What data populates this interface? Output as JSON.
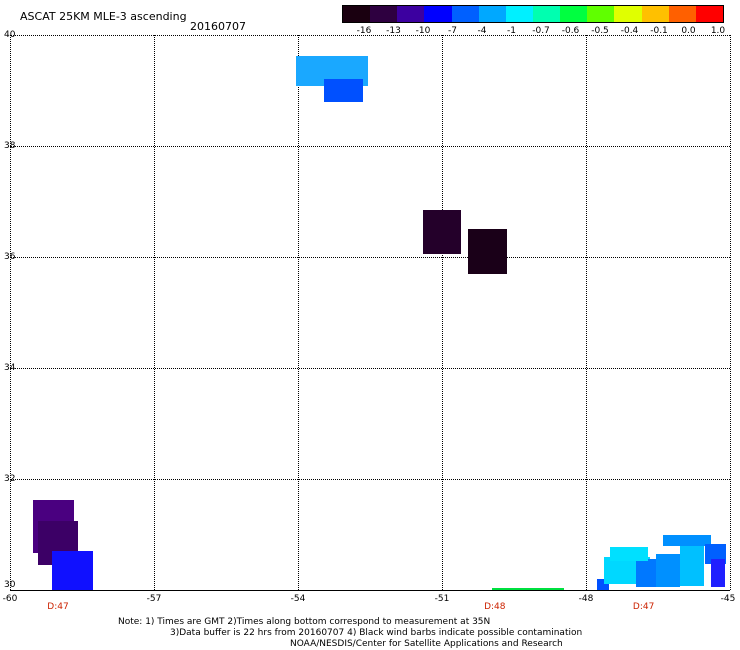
{
  "header": {
    "title": "ASCAT 25KM MLE-3 ascending",
    "date": "20160707"
  },
  "colorbar": {
    "labels": [
      "-16",
      "-13",
      "-10",
      "-7",
      "-4",
      "-1",
      "-0.7",
      "-0.6",
      "-0.5",
      "-0.4",
      "-0.1",
      "0.0",
      "1.0"
    ],
    "colors": [
      "#1a0010",
      "#2e0040",
      "#3c00a0",
      "#0000ff",
      "#0060ff",
      "#00a8ff",
      "#00f0ff",
      "#00ffb0",
      "#00ff40",
      "#60ff00",
      "#e0ff00",
      "#ffc000",
      "#ff6000",
      "#ff0000"
    ]
  },
  "chart_data": {
    "type": "heatmap",
    "x_ticks": [
      "-60",
      "-57",
      "-54",
      "-51",
      "-48",
      "-45"
    ],
    "y_ticks": [
      "40",
      "38",
      "36",
      "34",
      "32",
      "30"
    ],
    "xlim": [
      -60,
      -45
    ],
    "ylim": [
      30,
      40
    ],
    "grid": true,
    "time_labels": [
      {
        "lon": -59.0,
        "text": "D:47"
      },
      {
        "lon": -49.9,
        "text": "D:48"
      },
      {
        "lon": -46.8,
        "text": "D:47"
      }
    ],
    "cells": [
      {
        "lon": -53.3,
        "lat": 39.35,
        "w": 1.5,
        "h": 0.55,
        "color": "#1aa8ff"
      },
      {
        "lon": -53.05,
        "lat": 39.0,
        "w": 0.8,
        "h": 0.4,
        "color": "#0050ff"
      },
      {
        "lon": -51.0,
        "lat": 36.45,
        "w": 0.8,
        "h": 0.8,
        "color": "#24002a"
      },
      {
        "lon": -50.05,
        "lat": 36.1,
        "w": 0.8,
        "h": 0.8,
        "color": "#1a0018"
      },
      {
        "lon": -59.1,
        "lat": 31.15,
        "w": 0.85,
        "h": 0.95,
        "color": "#4a0080"
      },
      {
        "lon": -59.0,
        "lat": 30.85,
        "w": 0.85,
        "h": 0.8,
        "color": "#3c0066"
      },
      {
        "lon": -58.7,
        "lat": 30.35,
        "w": 0.85,
        "h": 0.7,
        "color": "#1010ff"
      },
      {
        "lon": -49.2,
        "lat": 30.02,
        "w": 1.5,
        "h": 0.04,
        "color": "#00e040"
      },
      {
        "lon": -47.65,
        "lat": 30.1,
        "w": 0.25,
        "h": 0.2,
        "color": "#0050ff"
      },
      {
        "lon": -47.15,
        "lat": 30.35,
        "w": 0.95,
        "h": 0.5,
        "color": "#00d8ff"
      },
      {
        "lon": -46.75,
        "lat": 30.3,
        "w": 0.4,
        "h": 0.5,
        "color": "#0078ff"
      },
      {
        "lon": -47.1,
        "lat": 30.65,
        "w": 0.8,
        "h": 0.25,
        "color": "#00e0ff"
      },
      {
        "lon": -46.3,
        "lat": 30.35,
        "w": 0.5,
        "h": 0.6,
        "color": "#0090ff"
      },
      {
        "lon": -45.8,
        "lat": 30.45,
        "w": 0.5,
        "h": 0.75,
        "color": "#00c0ff"
      },
      {
        "lon": -45.9,
        "lat": 30.9,
        "w": 1.0,
        "h": 0.2,
        "color": "#0090ff"
      },
      {
        "lon": -45.3,
        "lat": 30.65,
        "w": 0.45,
        "h": 0.35,
        "color": "#0060ff"
      },
      {
        "lon": -45.25,
        "lat": 30.3,
        "w": 0.3,
        "h": 0.5,
        "color": "#2020ff"
      }
    ]
  },
  "notes": {
    "line1": "Note: 1) Times are GMT 2)Times along bottom correspond to measurement at 35N",
    "line2": "3)Data buffer is 22 hrs from 20160707 4) Black wind barbs indicate possible contamination",
    "line3": "NOAA/NESDIS/Center for Satellite Applications and Research"
  }
}
